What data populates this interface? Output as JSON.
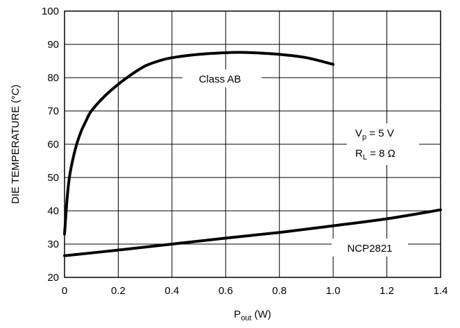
{
  "chart_data": {
    "type": "line",
    "xlabel_main": "P",
    "xlabel_sub": "out",
    "xlabel_unit": " (W)",
    "ylabel": "DIE TEMPERATURE (°C)",
    "xlim": [
      0,
      1.4
    ],
    "ylim": [
      20,
      100
    ],
    "x_ticks": [
      0,
      0.2,
      0.4,
      0.6,
      0.8,
      1.0,
      1.2,
      1.4
    ],
    "x_tick_labels": [
      "0",
      "0.2",
      "0.4",
      "0.6",
      "0.8",
      "1.0",
      "1.2",
      "1.4"
    ],
    "y_ticks": [
      20,
      30,
      40,
      50,
      60,
      70,
      80,
      90,
      100
    ],
    "y_tick_labels": [
      "20",
      "30",
      "40",
      "50",
      "60",
      "70",
      "80",
      "90",
      "100"
    ],
    "grid": true,
    "series": [
      {
        "name": "Class AB",
        "x": [
          0,
          0.01,
          0.02,
          0.04,
          0.06,
          0.08,
          0.1,
          0.15,
          0.2,
          0.25,
          0.3,
          0.35,
          0.4,
          0.5,
          0.6,
          0.65,
          0.7,
          0.8,
          0.9,
          1.0
        ],
        "y": [
          33,
          44,
          51,
          58.5,
          63.5,
          67,
          70,
          74.5,
          78,
          81,
          83.5,
          85,
          86,
          87,
          87.5,
          87.6,
          87.5,
          87,
          86,
          84
        ]
      },
      {
        "name": "NCP2821",
        "x": [
          0,
          0.2,
          0.4,
          0.6,
          0.8,
          1.0,
          1.2,
          1.4
        ],
        "y": [
          26.5,
          28.2,
          30,
          31.8,
          33.5,
          35.5,
          37.6,
          40.3
        ]
      }
    ],
    "annotations": {
      "class_ab": "Class AB",
      "ncp2821": "NCP2821",
      "vp_main": "V",
      "vp_sub": "p",
      "vp_rest": " = 5 V",
      "rl_main": "R",
      "rl_sub": "L",
      "rl_rest": " = 8 Ω"
    }
  }
}
